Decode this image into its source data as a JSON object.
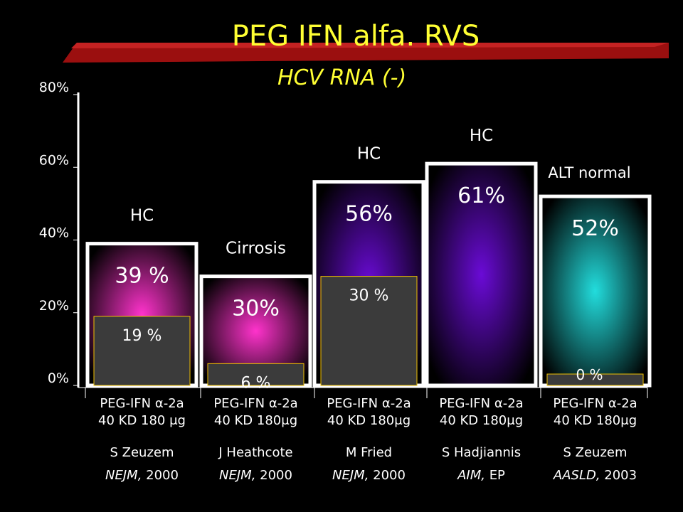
{
  "header": {
    "title": "PEG IFN alfa. RVS",
    "subtitle": "HCV RNA (-)"
  },
  "colors": {
    "title": "#ffff33",
    "banner": "#9b0f0f",
    "inner_box_border": "#f2c200",
    "inner_box_fill": "#3b3b3b"
  },
  "chart_data": {
    "type": "bar",
    "title": "PEG IFN alfa. RVS",
    "subtitle": "HCV RNA (-)",
    "ylim": [
      0,
      80
    ],
    "y_ticks": [
      "0%",
      "20%",
      "40%",
      "60%",
      "80%"
    ],
    "y_tick_values": [
      0,
      20,
      40,
      60,
      80
    ],
    "grid": false,
    "categories": [
      {
        "drug": "PEG-IFN α-2a",
        "dose": "40 KD 180 μg",
        "author": "S Zeuzem",
        "journal": "NEJM,",
        "year": "2000"
      },
      {
        "drug": "PEG-IFN α-2a",
        "dose": "40 KD 180μg",
        "author": "J Heathcote",
        "journal": "NEJM,",
        "year": "2000"
      },
      {
        "drug": "PEG-IFN α-2a",
        "dose": "40 KD 180μg",
        "author": "M Fried",
        "journal": "NEJM,",
        "year": "2000"
      },
      {
        "drug": "PEG-IFN α-2a",
        "dose": "40 KD 180μg",
        "author": "S Hadjiannis",
        "journal": "AIM,",
        "year": "EP"
      },
      {
        "drug": "PEG-IFN α-2a",
        "dose": "40 KD 180μg",
        "author": "S Zeuzem",
        "journal": "AASLD,",
        "year": "2003"
      }
    ],
    "series": [
      {
        "values": [
          39,
          30,
          56,
          61,
          52
        ],
        "labels": [
          "39 %",
          "30%",
          "56%",
          "61%",
          "52%"
        ],
        "colors": [
          "#ff33cc",
          "#ff33cc",
          "#6a0bd6",
          "#6a0bd6",
          "#22dddd"
        ]
      },
      {
        "values": [
          19,
          6,
          30,
          null,
          0
        ],
        "labels": [
          "19 %",
          "6 %",
          "30 %",
          "",
          "0 %"
        ]
      }
    ],
    "group_labels": [
      "HC",
      "Cirrosis",
      "HC",
      "HC",
      "ALT normal"
    ]
  }
}
